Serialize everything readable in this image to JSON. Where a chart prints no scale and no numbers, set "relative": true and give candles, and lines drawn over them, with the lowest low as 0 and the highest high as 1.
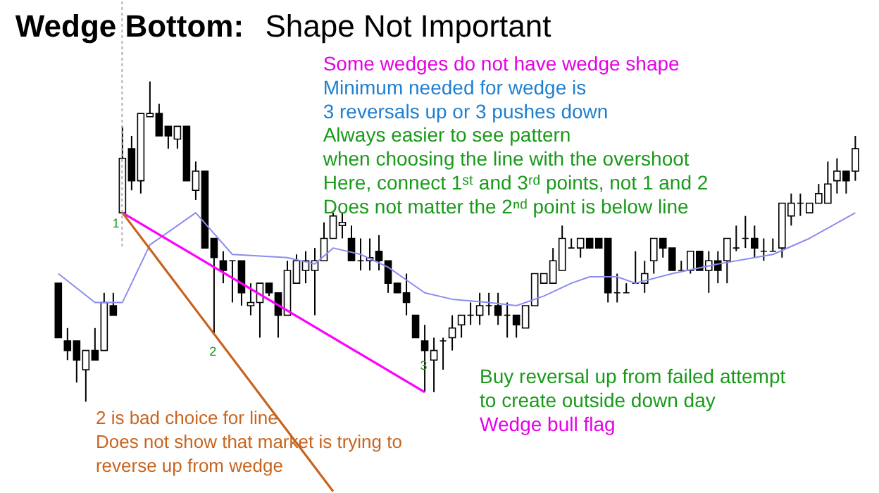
{
  "chart_data": {
    "type": "candlestick",
    "title": "Wedge Bottom: Shape Not Important",
    "relative": true,
    "categories": [
      null,
      null,
      null,
      null,
      null,
      null,
      null,
      null,
      null,
      null,
      null,
      null,
      null,
      null,
      null,
      null,
      null,
      null,
      null,
      null,
      null,
      null,
      null,
      null,
      null,
      null,
      null,
      null,
      null,
      null,
      null,
      null,
      null,
      null,
      null,
      null,
      null,
      null,
      null,
      null,
      null,
      null,
      null,
      null,
      null,
      null,
      null,
      null,
      null,
      null,
      null,
      null,
      null,
      null,
      null,
      null,
      null,
      null,
      null,
      null,
      null,
      null,
      null,
      null,
      null,
      null,
      null,
      null,
      null,
      null,
      null,
      null,
      null,
      null,
      null,
      null,
      null,
      null,
      null,
      null,
      null,
      null,
      null,
      null,
      null,
      null,
      null,
      null
    ],
    "ohlc": [
      [
        0.37,
        0.37,
        0.2,
        0.2
      ],
      [
        0.19,
        0.23,
        0.13,
        0.16
      ],
      [
        0.19,
        0.19,
        0.06,
        0.13
      ],
      [
        0.1,
        0.16,
        0.0,
        0.16
      ],
      [
        0.16,
        0.23,
        0.13,
        0.13
      ],
      [
        0.16,
        0.34,
        0.16,
        0.31
      ],
      [
        0.3,
        0.34,
        0.27,
        0.27
      ],
      [
        0.59,
        0.86,
        0.59,
        0.76
      ],
      [
        0.79,
        0.83,
        0.66,
        0.69
      ],
      [
        0.69,
        0.9,
        0.65,
        0.9
      ],
      [
        0.89,
        1.0,
        0.89,
        0.9
      ],
      [
        0.9,
        0.93,
        0.83,
        0.83
      ],
      [
        0.86,
        0.86,
        0.79,
        0.83
      ],
      [
        0.82,
        0.86,
        0.79,
        0.86
      ],
      [
        0.86,
        0.86,
        0.69,
        0.69
      ],
      [
        0.66,
        0.75,
        0.63,
        0.72
      ],
      [
        0.72,
        0.72,
        0.48,
        0.48
      ],
      [
        0.51,
        0.51,
        0.21,
        0.45
      ],
      [
        0.44,
        0.47,
        0.37,
        0.41
      ],
      [
        0.44,
        0.44,
        0.31,
        0.44
      ],
      [
        0.44,
        0.44,
        0.3,
        0.34
      ],
      [
        0.3,
        0.37,
        0.27,
        0.31
      ],
      [
        0.31,
        0.37,
        0.2,
        0.37
      ],
      [
        0.37,
        0.37,
        0.33,
        0.34
      ],
      [
        0.34,
        0.34,
        0.2,
        0.27
      ],
      [
        0.27,
        0.44,
        0.27,
        0.41
      ],
      [
        0.37,
        0.46,
        0.37,
        0.44
      ],
      [
        0.41,
        0.47,
        0.37,
        0.44
      ],
      [
        0.41,
        0.48,
        0.27,
        0.44
      ],
      [
        0.44,
        0.56,
        0.44,
        0.51
      ],
      [
        0.51,
        0.59,
        0.51,
        0.58
      ],
      [
        0.55,
        0.59,
        0.51,
        0.56
      ],
      [
        0.51,
        0.55,
        0.44,
        0.44
      ],
      [
        0.44,
        0.51,
        0.41,
        0.44
      ],
      [
        0.44,
        0.51,
        0.41,
        0.45
      ],
      [
        0.47,
        0.52,
        0.41,
        0.44
      ],
      [
        0.44,
        0.44,
        0.34,
        0.37
      ],
      [
        0.37,
        0.37,
        0.34,
        0.34
      ],
      [
        0.34,
        0.4,
        0.27,
        0.31
      ],
      [
        0.27,
        0.27,
        0.2,
        0.2
      ],
      [
        0.19,
        0.24,
        0.03,
        0.16
      ],
      [
        0.13,
        0.2,
        0.03,
        0.16
      ],
      [
        0.19,
        0.2,
        0.1,
        0.19
      ],
      [
        0.2,
        0.27,
        0.16,
        0.23
      ],
      [
        0.24,
        0.27,
        0.2,
        0.27
      ],
      [
        0.27,
        0.31,
        0.24,
        0.27
      ],
      [
        0.27,
        0.34,
        0.24,
        0.3
      ],
      [
        0.3,
        0.34,
        0.27,
        0.3
      ],
      [
        0.3,
        0.34,
        0.24,
        0.27
      ],
      [
        0.27,
        0.31,
        0.2,
        0.27
      ],
      [
        0.27,
        0.27,
        0.2,
        0.24
      ],
      [
        0.23,
        0.3,
        0.23,
        0.3
      ],
      [
        0.3,
        0.4,
        0.3,
        0.4
      ],
      [
        0.37,
        0.4,
        0.37,
        0.4
      ],
      [
        0.37,
        0.48,
        0.37,
        0.44
      ],
      [
        0.41,
        0.55,
        0.41,
        0.51
      ],
      [
        0.48,
        0.51,
        0.48,
        0.48
      ],
      [
        0.48,
        0.51,
        0.45,
        0.51
      ],
      [
        0.51,
        0.51,
        0.48,
        0.48
      ],
      [
        0.51,
        0.51,
        0.48,
        0.48
      ],
      [
        0.51,
        0.51,
        0.31,
        0.34
      ],
      [
        0.34,
        0.4,
        0.31,
        0.34
      ],
      [
        0.34,
        0.37,
        0.34,
        0.34
      ],
      [
        0.37,
        0.47,
        0.37,
        0.37
      ],
      [
        0.37,
        0.44,
        0.34,
        0.4
      ],
      [
        0.44,
        0.51,
        0.4,
        0.51
      ],
      [
        0.51,
        0.51,
        0.45,
        0.48
      ],
      [
        0.48,
        0.48,
        0.41,
        0.41
      ],
      [
        0.41,
        0.44,
        0.41,
        0.41
      ],
      [
        0.41,
        0.47,
        0.4,
        0.47
      ],
      [
        0.47,
        0.47,
        0.41,
        0.41
      ],
      [
        0.41,
        0.47,
        0.34,
        0.44
      ],
      [
        0.44,
        0.47,
        0.37,
        0.41
      ],
      [
        0.44,
        0.51,
        0.37,
        0.51
      ],
      [
        0.48,
        0.55,
        0.47,
        0.48
      ],
      [
        0.51,
        0.58,
        0.48,
        0.51
      ],
      [
        0.51,
        0.55,
        0.45,
        0.48
      ],
      [
        0.47,
        0.51,
        0.44,
        0.47
      ],
      [
        0.47,
        0.51,
        0.47,
        0.47
      ],
      [
        0.48,
        0.62,
        0.45,
        0.62
      ],
      [
        0.58,
        0.65,
        0.55,
        0.62
      ],
      [
        0.62,
        0.65,
        0.58,
        0.62
      ],
      [
        0.59,
        0.62,
        0.59,
        0.62
      ],
      [
        0.62,
        0.68,
        0.62,
        0.65
      ],
      [
        0.62,
        0.75,
        0.62,
        0.68
      ],
      [
        0.69,
        0.76,
        0.65,
        0.72
      ],
      [
        0.72,
        0.72,
        0.65,
        0.69
      ],
      [
        0.72,
        0.83,
        0.69,
        0.79
      ]
    ],
    "series": [
      {
        "type": "line",
        "color": "#8c8cf0",
        "values": [
          0.4,
          null,
          null,
          null,
          0.31,
          null,
          null,
          0.31,
          null,
          null,
          0.49,
          null,
          null,
          null,
          null,
          0.59,
          null,
          null,
          null,
          0.46,
          null,
          null,
          null,
          null,
          null,
          0.45,
          null,
          null,
          0.43,
          null,
          0.48,
          null,
          null,
          0.46,
          null,
          null,
          0.42,
          null,
          null,
          null,
          0.34,
          null,
          null,
          0.32,
          null,
          null,
          null,
          0.31,
          null,
          null,
          0.3,
          null,
          null,
          0.33,
          null,
          null,
          0.37,
          null,
          0.39,
          null,
          null,
          0.39,
          null,
          0.37,
          null,
          null,
          null,
          0.4,
          null,
          null,
          null,
          null,
          0.43,
          null,
          null,
          null,
          0.45,
          null,
          0.46,
          null,
          null,
          null,
          0.51,
          null,
          null,
          null,
          null,
          0.59
        ]
      },
      {
        "type": "line",
        "color": "#ff00ff",
        "values": [
          null,
          null,
          null,
          null,
          null,
          null,
          null,
          0.59,
          null,
          null,
          null,
          null,
          null,
          null,
          null,
          null,
          null,
          null,
          null,
          null,
          null,
          null,
          null,
          null,
          null,
          null,
          null,
          null,
          null,
          null,
          null,
          null,
          null,
          null,
          null,
          null,
          null,
          null,
          null,
          null,
          0.03,
          null,
          null,
          null,
          null,
          null,
          null,
          null,
          null,
          null,
          null,
          null,
          null,
          null,
          null,
          null,
          null,
          null,
          null,
          null,
          null,
          null,
          null,
          null,
          null,
          null,
          null,
          null,
          null,
          null,
          null,
          null,
          null,
          null,
          null,
          null,
          null,
          null,
          null,
          null,
          null,
          null,
          null,
          null,
          null,
          null,
          null,
          null
        ]
      },
      {
        "type": "line",
        "color": "#c8641e",
        "values": [
          null,
          null,
          null,
          null,
          null,
          null,
          null,
          0.59,
          null,
          null,
          null,
          null,
          null,
          null,
          null,
          null,
          null,
          null,
          null,
          null,
          null,
          null,
          null,
          null,
          null,
          null,
          null,
          null,
          null,
          null,
          -0.28,
          null,
          null,
          null,
          null,
          null,
          null,
          null,
          null,
          null,
          null,
          null,
          null,
          null,
          null,
          null,
          null,
          null,
          null,
          null,
          null,
          null,
          null,
          null,
          null,
          null,
          null,
          null,
          null,
          null,
          null,
          null,
          null,
          null,
          null,
          null,
          null,
          null,
          null,
          null,
          null,
          null,
          null,
          null,
          null,
          null,
          null,
          null,
          null,
          null,
          null,
          null,
          null,
          null,
          null,
          null,
          null,
          null
        ]
      }
    ],
    "annotations": [
      "1",
      "2",
      "3",
      "Some wedges do not have wedge shape",
      "Minimum needed for wedge is",
      "3 reversals up or 3 pushes down",
      "Always easier to see pattern",
      "when choosing the line with the overshoot",
      "Here, connect 1ˢᵗ and 3ʳᵈ points, not 1 and 2",
      "Does not matter the 2ⁿᵈ point is below line",
      "Buy reversal up from failed attempt",
      "to create outside down day",
      "Wedge bull flag",
      "2 is bad choice for line",
      "Does not show that market is trying to",
      "reverse up from wedge"
    ]
  }
}
